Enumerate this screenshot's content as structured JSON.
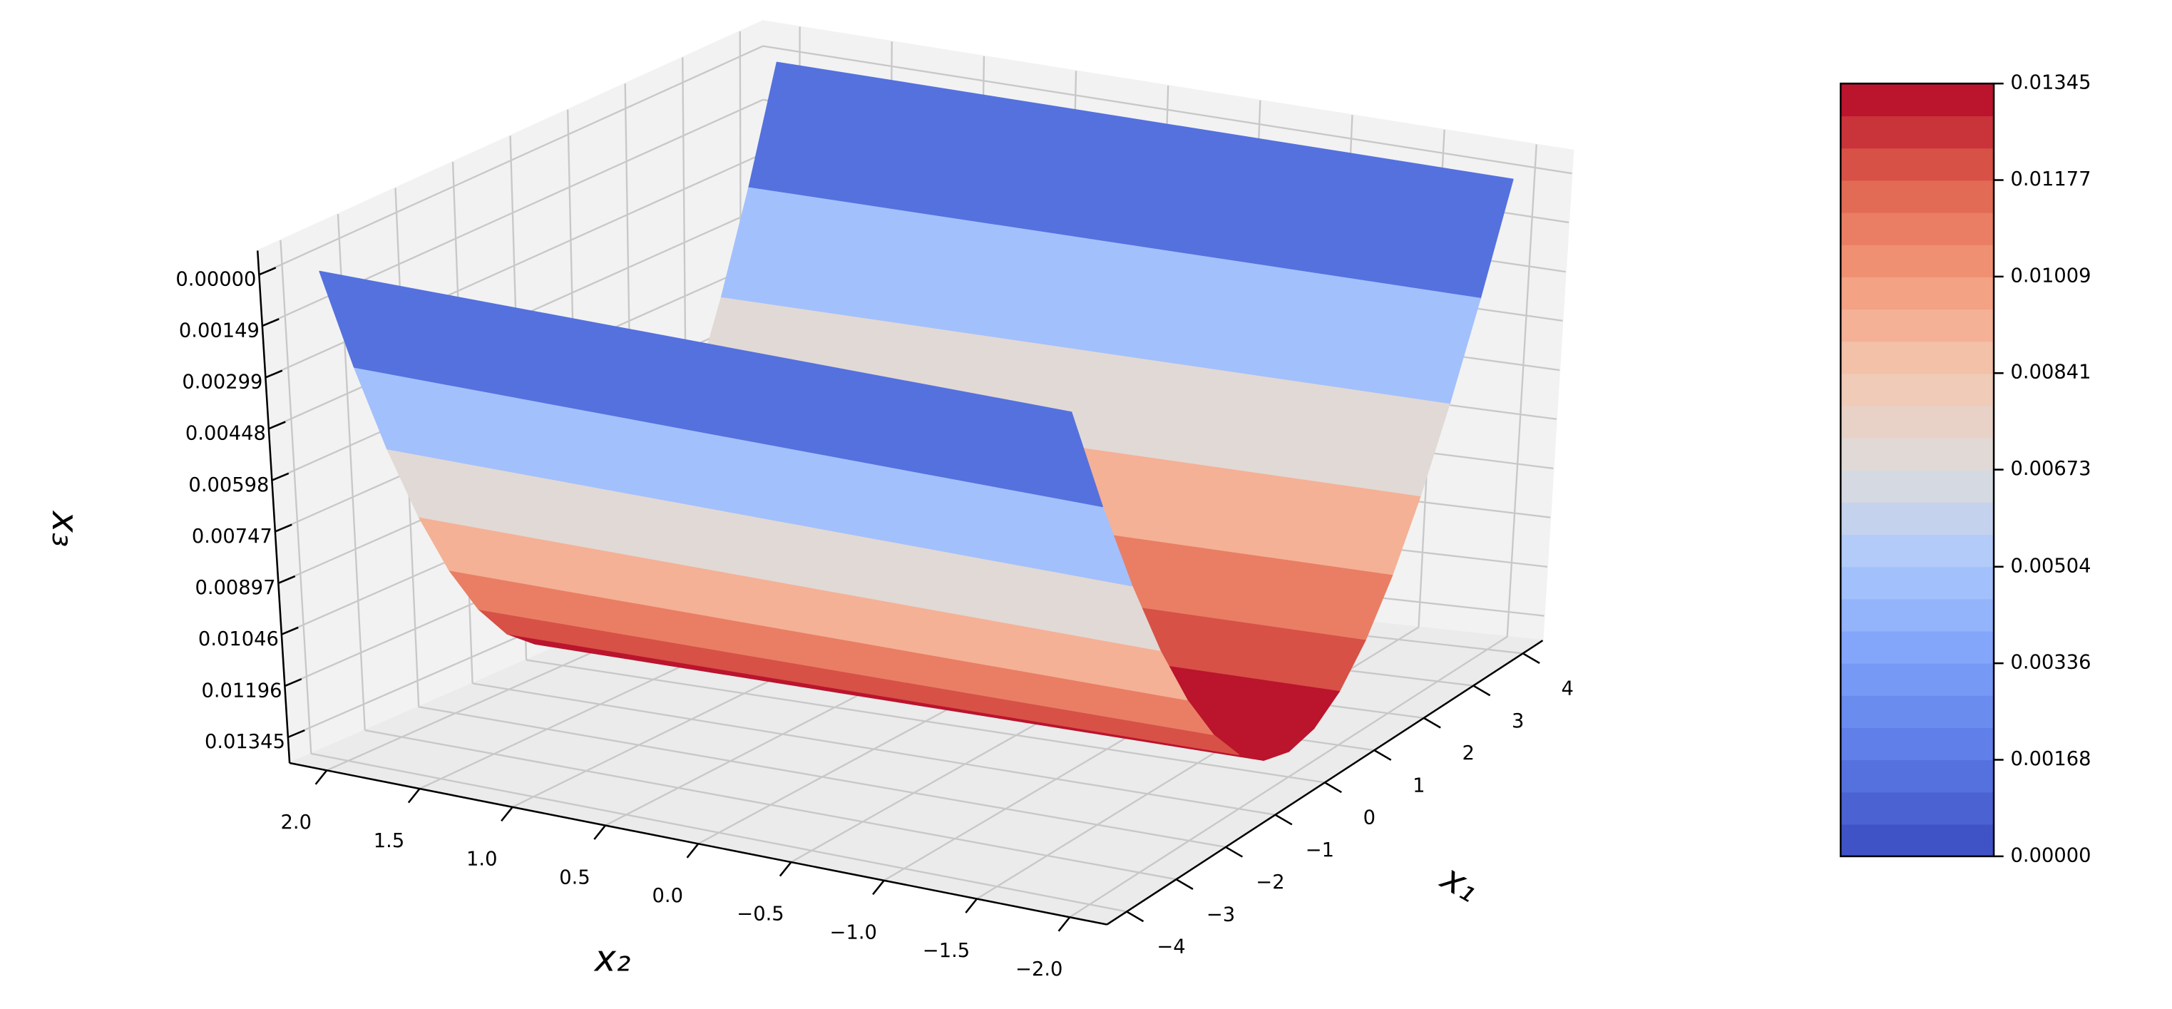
{
  "chart_data": {
    "type": "surface",
    "x_label": "x₁",
    "y_label": "x₂",
    "z_label": "x₃",
    "x": [
      -4,
      -3.5,
      -3,
      -2.5,
      -2,
      -1.5,
      -1,
      -0.5,
      0,
      0.5,
      1,
      1.5,
      2,
      2.5,
      3,
      3.5,
      4
    ],
    "values": [
      0,
      0.00315,
      0.00588,
      0.0082,
      0.01009,
      0.01156,
      0.01261,
      0.01324,
      0.01345,
      0.01324,
      0.01261,
      0.01156,
      0.01009,
      0.0082,
      0.00588,
      0.00315,
      0
    ],
    "x2_range": [
      -2,
      2
    ],
    "xlim": [
      -4.4,
      4.4
    ],
    "ylim": [
      2.2,
      -2.2
    ],
    "zlim": [
      0.0142,
      -0.0007
    ],
    "xticks": [
      {
        "value": -4,
        "label": "−4"
      },
      {
        "value": -3,
        "label": "−3"
      },
      {
        "value": -2,
        "label": "−2"
      },
      {
        "value": -1,
        "label": "−1"
      },
      0,
      1,
      2,
      3,
      4
    ],
    "yticks": [
      {
        "value": 2,
        "label": "2.0"
      },
      1.5,
      {
        "value": 1,
        "label": "1.0"
      },
      0.5,
      {
        "value": 0,
        "label": "0.0"
      },
      {
        "value": -0.5,
        "label": "−0.5"
      },
      {
        "value": -1,
        "label": "−1.0"
      },
      {
        "value": -1.5,
        "label": "−1.5"
      },
      {
        "value": -2,
        "label": "−2.0"
      }
    ],
    "zticks": [
      {
        "value": 0,
        "label": "0.00000"
      },
      0.00149,
      0.00299,
      0.00448,
      0.00598,
      0.00747,
      0.00897,
      0.01046,
      0.01196,
      0.01345
    ],
    "grid": true,
    "colormap": [
      "#3b4cc0",
      "#5a78e4",
      "#7b9ff9",
      "#aac7fd",
      "#dddcdc",
      "#f3c7b1",
      "#f49a7b",
      "#de614d",
      "#b40426"
    ],
    "colorbar": {
      "lim": [
        0,
        0.01345
      ],
      "levels": 24,
      "ticks": [
        {
          "value": 0,
          "label": "0.00000"
        },
        0.00168,
        0.00336,
        0.00504,
        0.00673,
        0.00841,
        0.01009,
        0.01177,
        0.01345
      ]
    }
  }
}
